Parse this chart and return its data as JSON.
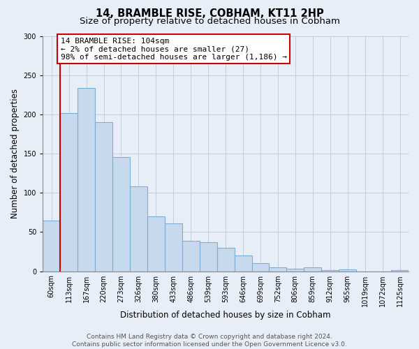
{
  "title": "14, BRAMBLE RISE, COBHAM, KT11 2HP",
  "subtitle": "Size of property relative to detached houses in Cobham",
  "xlabel": "Distribution of detached houses by size in Cobham",
  "ylabel": "Number of detached properties",
  "categories": [
    "60sqm",
    "113sqm",
    "167sqm",
    "220sqm",
    "273sqm",
    "326sqm",
    "380sqm",
    "433sqm",
    "486sqm",
    "539sqm",
    "593sqm",
    "646sqm",
    "699sqm",
    "752sqm",
    "806sqm",
    "859sqm",
    "912sqm",
    "965sqm",
    "1019sqm",
    "1072sqm",
    "1125sqm"
  ],
  "values": [
    65,
    202,
    234,
    190,
    146,
    108,
    70,
    61,
    39,
    37,
    30,
    20,
    10,
    5,
    3,
    5,
    1,
    2,
    0,
    0,
    1
  ],
  "bar_color": "#c6d9ed",
  "bar_edge_color": "#7ab0d4",
  "marker_line_color": "#cc0000",
  "annotation_line1": "14 BRAMBLE RISE: 104sqm",
  "annotation_line2": "← 2% of detached houses are smaller (27)",
  "annotation_line3": "98% of semi-detached houses are larger (1,186) →",
  "annotation_box_edge_color": "#cc0000",
  "ylim": [
    0,
    300
  ],
  "yticks": [
    0,
    50,
    100,
    150,
    200,
    250,
    300
  ],
  "background_color": "#e8eef8",
  "plot_background_color": "#e8eef8",
  "grid_color": "#c0cfe0",
  "title_fontsize": 10.5,
  "subtitle_fontsize": 9.5,
  "tick_fontsize": 7,
  "ylabel_fontsize": 8.5,
  "xlabel_fontsize": 8.5,
  "footer_fontsize": 6.5,
  "footer_line1": "Contains HM Land Registry data © Crown copyright and database right 2024.",
  "footer_line2": "Contains public sector information licensed under the Open Government Licence v3.0."
}
